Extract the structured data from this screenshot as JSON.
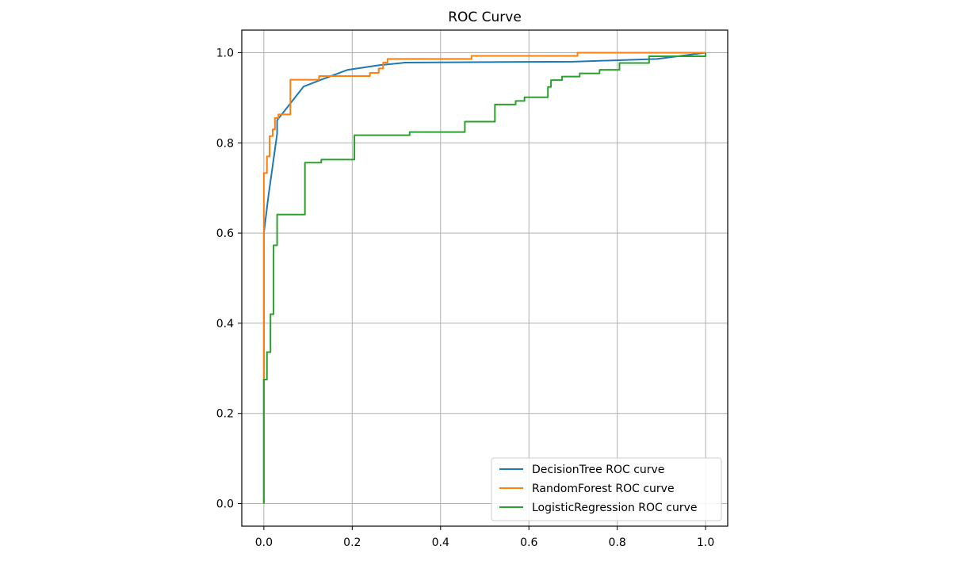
{
  "chart_data": {
    "type": "line",
    "title": "ROC Curve",
    "xlabel": "",
    "ylabel": "",
    "xlim": [
      -0.05,
      1.05
    ],
    "ylim": [
      -0.05,
      1.05
    ],
    "xticks": [
      "0.0",
      "0.2",
      "0.4",
      "0.6",
      "0.8",
      "1.0"
    ],
    "yticks": [
      "0.0",
      "0.2",
      "0.4",
      "0.6",
      "0.8",
      "1.0"
    ],
    "grid": true,
    "legend_position": "lower-right",
    "series": [
      {
        "name": "DecisionTree ROC curve",
        "color": "#1f77b4",
        "points": [
          [
            0.0,
            0.0
          ],
          [
            0.0,
            0.6
          ],
          [
            0.01,
            0.68
          ],
          [
            0.02,
            0.75
          ],
          [
            0.03,
            0.82
          ],
          [
            0.03,
            0.85
          ],
          [
            0.05,
            0.875
          ],
          [
            0.09,
            0.925
          ],
          [
            0.13,
            0.94
          ],
          [
            0.19,
            0.962
          ],
          [
            0.26,
            0.972
          ],
          [
            0.32,
            0.978
          ],
          [
            0.5,
            0.979
          ],
          [
            0.7,
            0.98
          ],
          [
            0.89,
            0.986
          ],
          [
            1.0,
            1.0
          ]
        ]
      },
      {
        "name": "RandomForest ROC curve",
        "color": "#ff7f0e",
        "points": [
          [
            0.0,
            0.0
          ],
          [
            0.0,
            0.28
          ],
          [
            0.0,
            0.6
          ],
          [
            0.0,
            0.733
          ],
          [
            0.007,
            0.733
          ],
          [
            0.007,
            0.77
          ],
          [
            0.013,
            0.77
          ],
          [
            0.013,
            0.815
          ],
          [
            0.02,
            0.815
          ],
          [
            0.02,
            0.83
          ],
          [
            0.025,
            0.83
          ],
          [
            0.025,
            0.855
          ],
          [
            0.033,
            0.855
          ],
          [
            0.033,
            0.863
          ],
          [
            0.06,
            0.863
          ],
          [
            0.06,
            0.94
          ],
          [
            0.125,
            0.94
          ],
          [
            0.125,
            0.948
          ],
          [
            0.24,
            0.948
          ],
          [
            0.24,
            0.955
          ],
          [
            0.26,
            0.955
          ],
          [
            0.26,
            0.965
          ],
          [
            0.27,
            0.965
          ],
          [
            0.27,
            0.978
          ],
          [
            0.28,
            0.978
          ],
          [
            0.28,
            0.986
          ],
          [
            0.47,
            0.986
          ],
          [
            0.47,
            0.993
          ],
          [
            0.71,
            0.993
          ],
          [
            0.71,
            1.0
          ],
          [
            1.0,
            1.0
          ]
        ]
      },
      {
        "name": "LogisticRegression ROC curve",
        "color": "#2ca02c",
        "points": [
          [
            0.0,
            0.0
          ],
          [
            0.0,
            0.275
          ],
          [
            0.007,
            0.275
          ],
          [
            0.007,
            0.336
          ],
          [
            0.015,
            0.336
          ],
          [
            0.015,
            0.42
          ],
          [
            0.022,
            0.42
          ],
          [
            0.022,
            0.573
          ],
          [
            0.03,
            0.573
          ],
          [
            0.03,
            0.641
          ],
          [
            0.093,
            0.641
          ],
          [
            0.093,
            0.756
          ],
          [
            0.13,
            0.756
          ],
          [
            0.13,
            0.763
          ],
          [
            0.205,
            0.763
          ],
          [
            0.205,
            0.817
          ],
          [
            0.33,
            0.817
          ],
          [
            0.33,
            0.824
          ],
          [
            0.455,
            0.824
          ],
          [
            0.455,
            0.847
          ],
          [
            0.523,
            0.847
          ],
          [
            0.523,
            0.885
          ],
          [
            0.57,
            0.885
          ],
          [
            0.57,
            0.893
          ],
          [
            0.59,
            0.893
          ],
          [
            0.59,
            0.901
          ],
          [
            0.643,
            0.901
          ],
          [
            0.643,
            0.924
          ],
          [
            0.65,
            0.924
          ],
          [
            0.65,
            0.939
          ],
          [
            0.675,
            0.939
          ],
          [
            0.675,
            0.947
          ],
          [
            0.715,
            0.947
          ],
          [
            0.715,
            0.954
          ],
          [
            0.76,
            0.954
          ],
          [
            0.76,
            0.962
          ],
          [
            0.805,
            0.962
          ],
          [
            0.805,
            0.977
          ],
          [
            0.872,
            0.977
          ],
          [
            0.872,
            0.992
          ],
          [
            1.0,
            0.992
          ],
          [
            1.0,
            1.0
          ]
        ]
      }
    ]
  }
}
